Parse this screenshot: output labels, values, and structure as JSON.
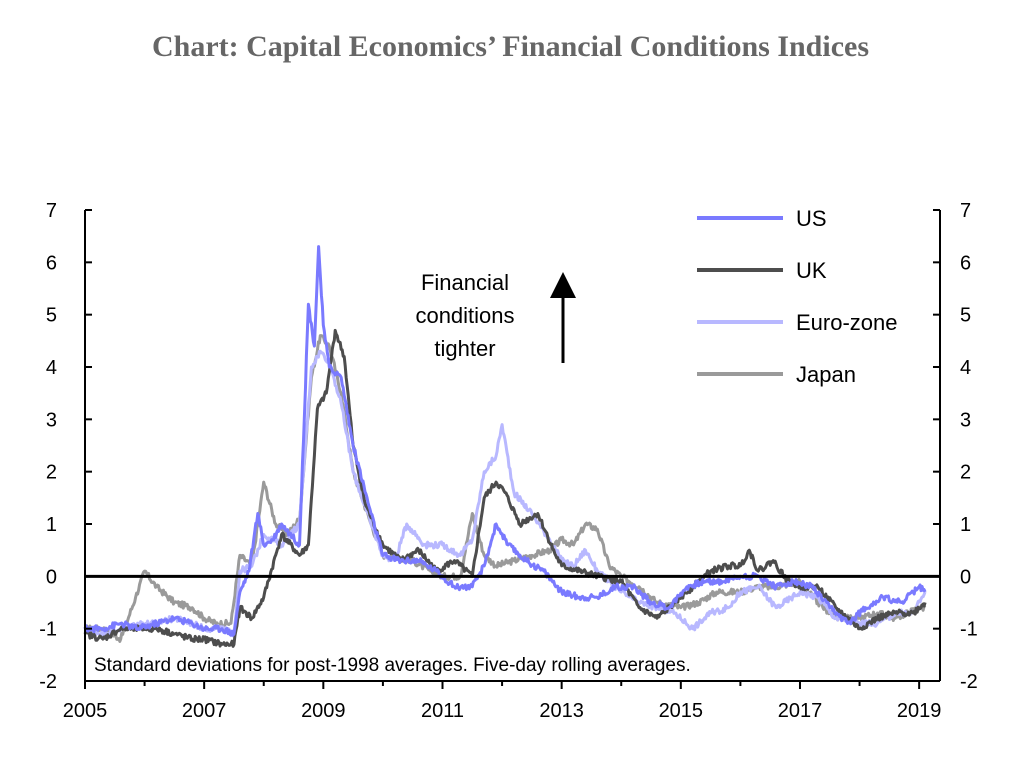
{
  "chart_data": {
    "type": "line",
    "title": "Chart: Capital Economics’ Financial Conditions Indices",
    "note": "Standard deviations for post-1998 averages. Five-day rolling averages.",
    "annotation_lines": [
      "Financial",
      "conditions",
      "tighter"
    ],
    "xlim": [
      2005,
      2019.35
    ],
    "ylim": [
      -2,
      7
    ],
    "x_ticks": [
      2005,
      2007,
      2009,
      2011,
      2013,
      2015,
      2017,
      2019
    ],
    "x_tick_labels": [
      "2005",
      "2007",
      "2009",
      "2011",
      "2013",
      "2015",
      "2017",
      "2019"
    ],
    "y_ticks": [
      -2,
      -1,
      0,
      1,
      2,
      3,
      4,
      5,
      6,
      7
    ],
    "y_tick_labels": [
      "-2",
      "-1",
      "0",
      "1",
      "2",
      "3",
      "4",
      "5",
      "6",
      "7"
    ],
    "series": [
      {
        "name": "Japan",
        "color": "#9a9a9a",
        "x": [
          2005.0,
          2005.3,
          2005.6,
          2005.85,
          2006.0,
          2006.2,
          2006.5,
          2006.8,
          2007.0,
          2007.2,
          2007.45,
          2007.6,
          2007.8,
          2008.0,
          2008.2,
          2008.4,
          2008.6,
          2008.8,
          2008.95,
          2009.1,
          2009.3,
          2009.5,
          2009.8,
          2010.0,
          2010.2,
          2010.5,
          2010.8,
          2011.0,
          2011.3,
          2011.5,
          2011.7,
          2011.9,
          2012.2,
          2012.5,
          2012.8,
          2013.0,
          2013.2,
          2013.4,
          2013.6,
          2013.8,
          2014.0,
          2014.3,
          2014.6,
          2015.0,
          2015.3,
          2015.6,
          2016.0,
          2016.3,
          2016.6,
          2017.0,
          2017.3,
          2017.6,
          2018.0,
          2018.3,
          2018.6,
          2019.0,
          2019.1
        ],
        "values": [
          -1.0,
          -1.0,
          -1.2,
          -0.4,
          0.1,
          -0.2,
          -0.5,
          -0.6,
          -0.8,
          -0.9,
          -0.9,
          0.4,
          0.2,
          1.8,
          1.0,
          0.8,
          1.1,
          3.8,
          4.6,
          4.4,
          3.5,
          2.0,
          1.0,
          0.4,
          0.4,
          0.3,
          0.1,
          0.0,
          0.0,
          1.2,
          0.4,
          0.2,
          0.3,
          0.4,
          0.5,
          0.7,
          0.6,
          1.0,
          0.9,
          0.2,
          0.0,
          -0.2,
          -0.5,
          -0.6,
          -0.5,
          -0.3,
          -0.3,
          -0.2,
          -0.2,
          -0.1,
          -0.5,
          -0.8,
          -0.8,
          -0.7,
          -0.8,
          -0.6,
          -0.6
        ]
      },
      {
        "name": "Euro-zone",
        "color": "#b8b8ff",
        "x": [
          2005.0,
          2005.3,
          2005.6,
          2005.9,
          2006.2,
          2006.5,
          2006.8,
          2007.0,
          2007.3,
          2007.5,
          2007.6,
          2007.8,
          2008.0,
          2008.3,
          2008.6,
          2008.8,
          2008.95,
          2009.1,
          2009.3,
          2009.5,
          2009.8,
          2010.0,
          2010.2,
          2010.4,
          2010.7,
          2011.0,
          2011.3,
          2011.5,
          2011.7,
          2011.9,
          2012.0,
          2012.2,
          2012.5,
          2012.8,
          2013.0,
          2013.2,
          2013.4,
          2013.6,
          2013.8,
          2014.0,
          2014.3,
          2014.6,
          2014.9,
          2015.2,
          2015.5,
          2015.8,
          2016.0,
          2016.3,
          2016.6,
          2017.0,
          2017.3,
          2017.6,
          2018.0,
          2018.3,
          2018.6,
          2018.9,
          2019.1
        ],
        "values": [
          -1.0,
          -1.1,
          -1.0,
          -0.9,
          -0.9,
          -0.8,
          -0.9,
          -1.0,
          -1.0,
          -1.1,
          0.1,
          0.2,
          0.8,
          0.6,
          1.0,
          4.0,
          4.3,
          4.1,
          3.3,
          2.0,
          1.0,
          0.4,
          0.3,
          1.0,
          0.6,
          0.6,
          0.4,
          0.7,
          2.0,
          2.3,
          2.9,
          1.6,
          1.2,
          0.7,
          0.3,
          0.2,
          0.5,
          0.1,
          -0.1,
          -0.3,
          -0.5,
          -0.6,
          -0.7,
          -1.0,
          -0.7,
          -0.6,
          -0.3,
          -0.2,
          -0.6,
          -0.3,
          -0.4,
          -0.8,
          -0.9,
          -0.9,
          -0.7,
          -0.7,
          -0.3
        ]
      },
      {
        "name": "UK",
        "color": "#4d4d4d",
        "x": [
          2005.0,
          2005.3,
          2005.6,
          2005.9,
          2006.2,
          2006.5,
          2006.8,
          2007.0,
          2007.3,
          2007.5,
          2007.6,
          2007.8,
          2008.0,
          2008.3,
          2008.6,
          2008.75,
          2008.9,
          2009.05,
          2009.2,
          2009.35,
          2009.5,
          2009.7,
          2010.0,
          2010.3,
          2010.6,
          2010.9,
          2011.2,
          2011.5,
          2011.7,
          2011.9,
          2012.05,
          2012.3,
          2012.6,
          2012.9,
          2013.0,
          2013.3,
          2013.6,
          2014.0,
          2014.3,
          2014.6,
          2014.9,
          2015.2,
          2015.5,
          2015.8,
          2016.0,
          2016.15,
          2016.3,
          2016.55,
          2016.8,
          2017.0,
          2017.3,
          2017.6,
          2018.0,
          2018.3,
          2018.6,
          2018.9,
          2019.1
        ],
        "values": [
          -1.1,
          -1.2,
          -1.0,
          -1.0,
          -1.0,
          -1.1,
          -1.2,
          -1.2,
          -1.3,
          -1.3,
          -0.6,
          -0.8,
          -0.4,
          0.8,
          0.4,
          0.6,
          3.2,
          3.5,
          4.7,
          4.2,
          2.5,
          1.4,
          0.6,
          0.3,
          0.5,
          0.1,
          0.3,
          0.0,
          1.5,
          1.8,
          1.6,
          1.0,
          1.2,
          0.4,
          0.2,
          0.1,
          0.0,
          -0.1,
          -0.6,
          -0.8,
          -0.5,
          -0.2,
          0.1,
          0.2,
          0.2,
          0.5,
          0.1,
          0.3,
          -0.1,
          -0.2,
          -0.2,
          -0.6,
          -1.0,
          -0.8,
          -0.7,
          -0.7,
          -0.5
        ]
      },
      {
        "name": "US",
        "color": "#7a7aff",
        "x": [
          2005.0,
          2005.3,
          2005.6,
          2005.9,
          2006.2,
          2006.5,
          2006.8,
          2007.0,
          2007.3,
          2007.5,
          2007.6,
          2007.75,
          2007.9,
          2008.0,
          2008.15,
          2008.3,
          2008.6,
          2008.75,
          2008.85,
          2008.92,
          2009.0,
          2009.1,
          2009.3,
          2009.5,
          2009.8,
          2010.0,
          2010.3,
          2010.6,
          2010.9,
          2011.2,
          2011.5,
          2011.7,
          2011.9,
          2012.1,
          2012.4,
          2012.7,
          2013.0,
          2013.3,
          2013.6,
          2013.9,
          2014.2,
          2014.5,
          2014.8,
          2015.1,
          2015.4,
          2015.7,
          2016.0,
          2016.3,
          2016.6,
          2016.9,
          2017.2,
          2017.5,
          2017.8,
          2018.1,
          2018.4,
          2018.7,
          2019.0,
          2019.1
        ],
        "values": [
          -1.0,
          -1.0,
          -0.9,
          -1.0,
          -0.9,
          -0.8,
          -0.9,
          -1.0,
          -1.0,
          -1.1,
          -0.3,
          0.1,
          1.2,
          0.6,
          0.7,
          1.0,
          0.6,
          5.2,
          4.4,
          6.3,
          4.8,
          4.0,
          3.8,
          2.5,
          1.2,
          0.4,
          0.3,
          0.3,
          0.1,
          -0.2,
          -0.2,
          0.2,
          1.0,
          0.6,
          0.3,
          0.1,
          -0.3,
          -0.4,
          -0.4,
          -0.2,
          -0.2,
          -0.5,
          -0.6,
          -0.2,
          -0.1,
          -0.1,
          0.0,
          0.0,
          -0.2,
          -0.1,
          -0.2,
          -0.6,
          -0.9,
          -0.6,
          -0.4,
          -0.5,
          -0.2,
          -0.3
        ]
      }
    ],
    "legend": [
      {
        "name": "US",
        "color": "#7a7aff"
      },
      {
        "name": "UK",
        "color": "#4d4d4d"
      },
      {
        "name": "Euro-zone",
        "color": "#b8b8ff"
      },
      {
        "name": "Japan",
        "color": "#9a9a9a"
      }
    ]
  }
}
